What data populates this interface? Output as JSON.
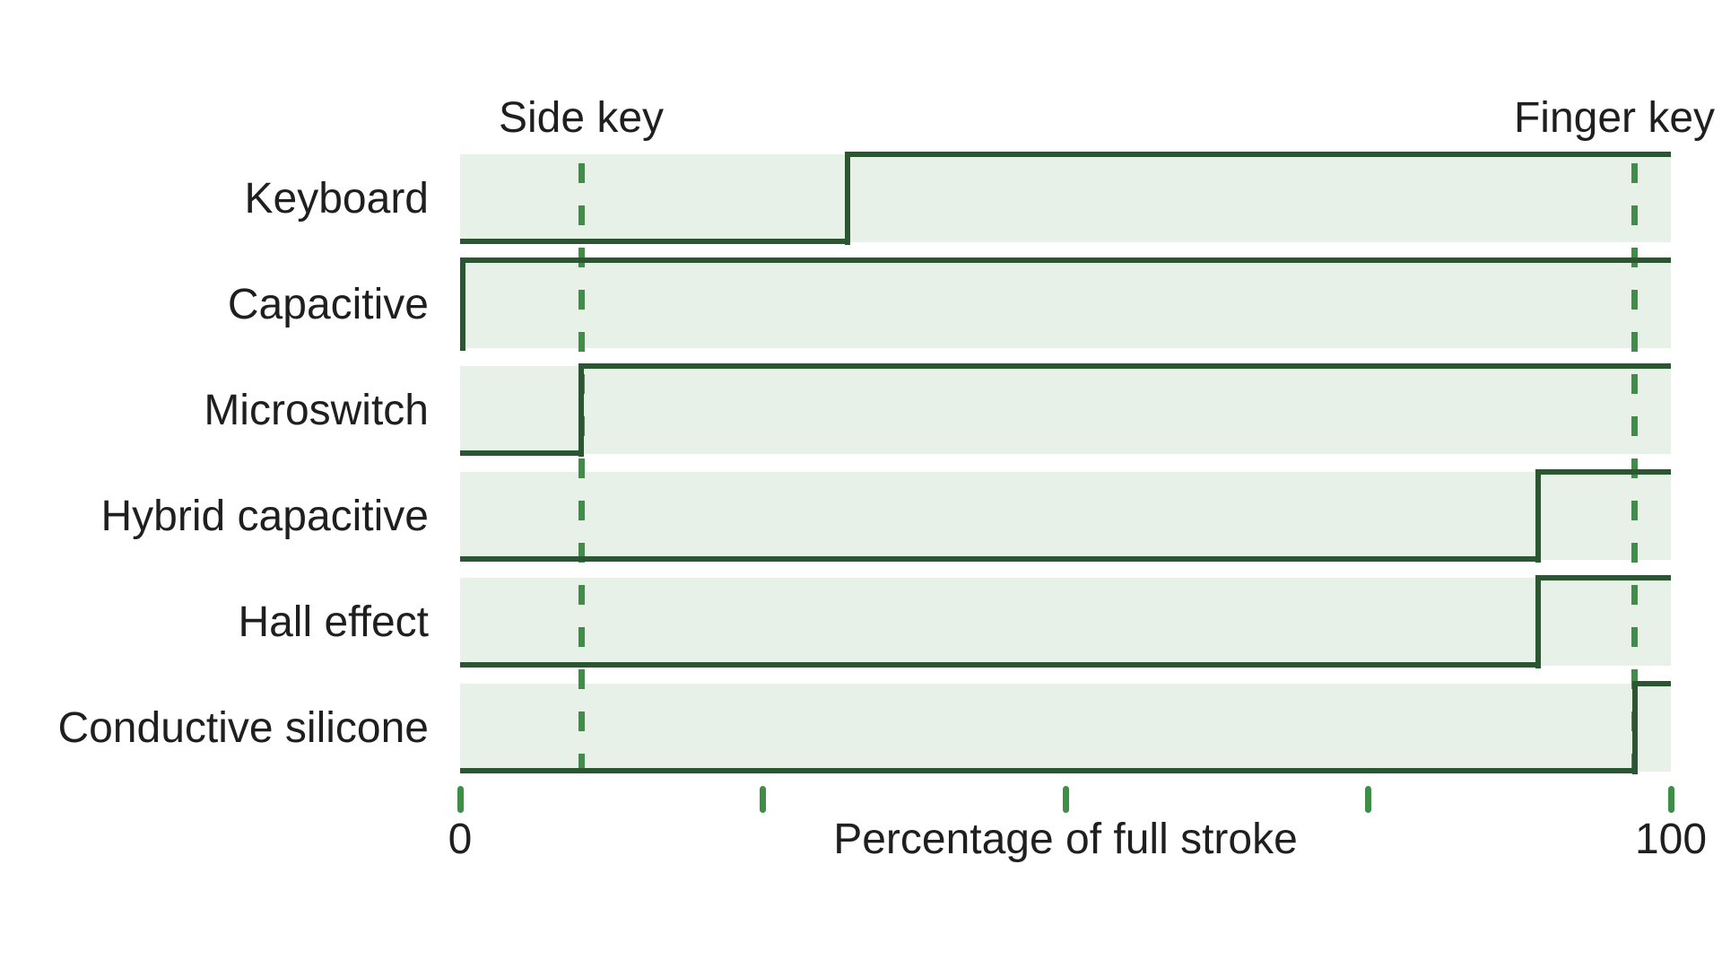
{
  "chart_data": {
    "type": "line",
    "subtype": "step",
    "title": "",
    "xlabel": "Percentage of full stroke",
    "ylabel": "",
    "xlim": [
      0,
      100
    ],
    "x_ticks": [
      0,
      25,
      50,
      75,
      100
    ],
    "x_tick_label_left": "0",
    "x_tick_label_right": "100",
    "grid": false,
    "legend_position": "none",
    "categories": [
      "Keyboard",
      "Capacitive",
      "Microswitch",
      "Hybrid capacitive",
      "Hall effect",
      "Conductive silicone"
    ],
    "series": [
      {
        "name": "Keyboard",
        "actuation_pct": 32,
        "points": [
          [
            0,
            0
          ],
          [
            32,
            0
          ],
          [
            32,
            1
          ],
          [
            100,
            1
          ]
        ]
      },
      {
        "name": "Capacitive",
        "actuation_pct": 0,
        "points": [
          [
            0,
            0
          ],
          [
            0,
            1
          ],
          [
            100,
            1
          ]
        ]
      },
      {
        "name": "Microswitch",
        "actuation_pct": 10,
        "points": [
          [
            0,
            0
          ],
          [
            10,
            0
          ],
          [
            10,
            1
          ],
          [
            100,
            1
          ]
        ]
      },
      {
        "name": "Hybrid capacitive",
        "actuation_pct": 89,
        "points": [
          [
            0,
            0
          ],
          [
            89,
            0
          ],
          [
            89,
            1
          ],
          [
            100,
            1
          ]
        ]
      },
      {
        "name": "Hall effect",
        "actuation_pct": 89,
        "points": [
          [
            0,
            0
          ],
          [
            89,
            0
          ],
          [
            89,
            1
          ],
          [
            100,
            1
          ]
        ]
      },
      {
        "name": "Conductive silicone",
        "actuation_pct": 97,
        "points": [
          [
            0,
            0
          ],
          [
            97,
            0
          ],
          [
            97,
            1
          ],
          [
            100,
            1
          ]
        ]
      }
    ],
    "reference_lines": [
      {
        "label": "Side key",
        "x_pct": 10
      },
      {
        "label": "Finger key",
        "x_pct": 97
      }
    ],
    "colors": {
      "background": "#ffffff",
      "band_fill": "#e8f1e8",
      "step_line": "#2a5632",
      "reference_green": "#3e8e47",
      "text": "#1f1f1f"
    }
  }
}
